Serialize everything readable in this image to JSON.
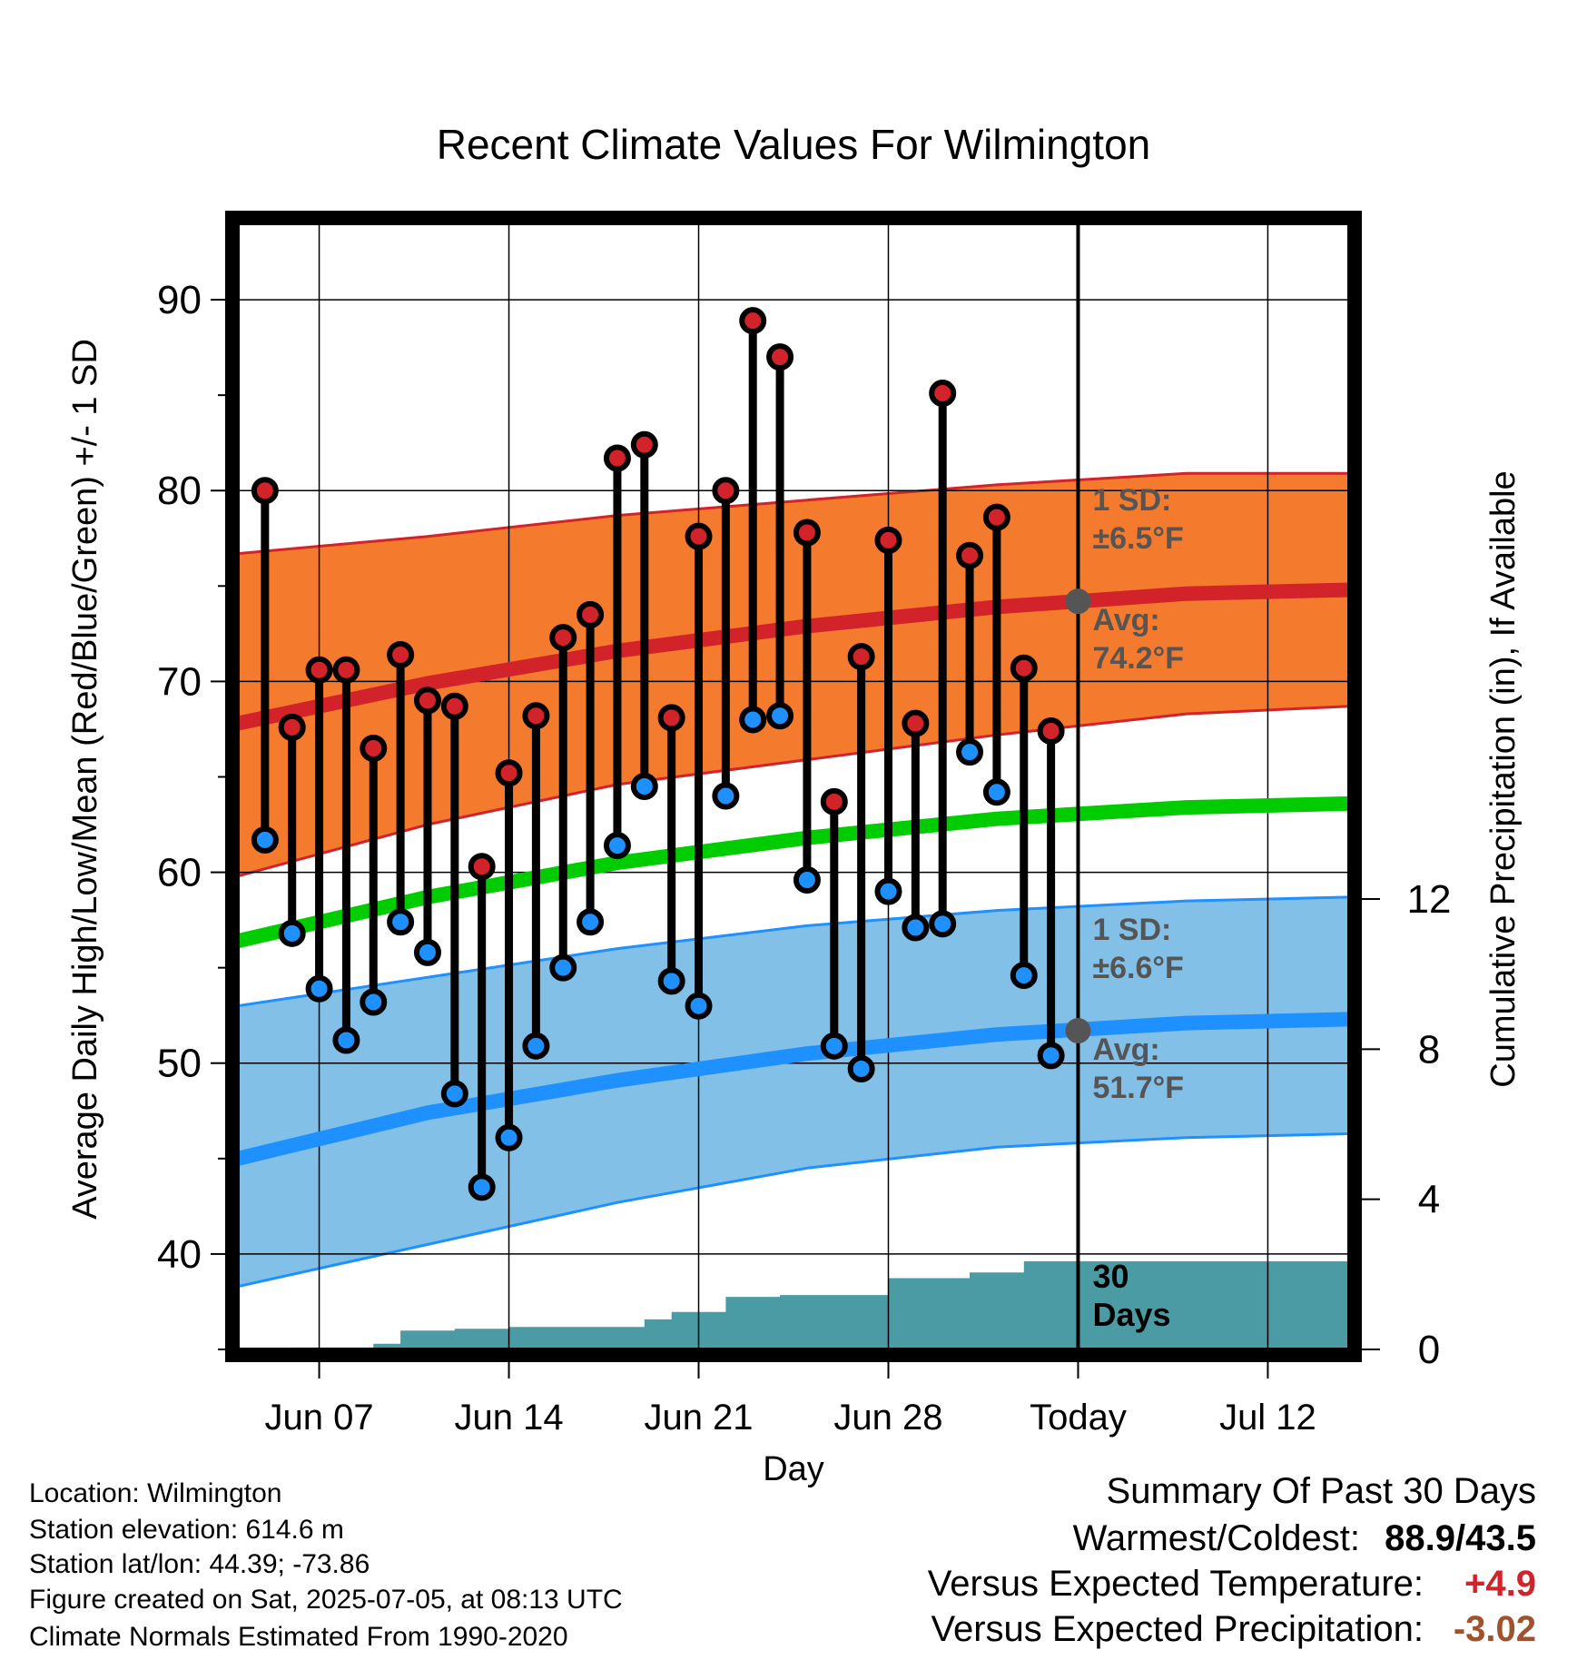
{
  "chart_data": {
    "type": "line",
    "title": "Recent Climate Values For Wilmington",
    "xlabel": "Day",
    "ylabel": "Average Daily High/Low/Mean (Red/Blue/Green) +/- 1 SD",
    "y2label": "Cumulative Precipitation (in), If Available",
    "ylim": [
      35,
      94
    ],
    "y_ticks": [
      40,
      50,
      60,
      70,
      80,
      90
    ],
    "y2lim": [
      0,
      30
    ],
    "y2_ticks": [
      0,
      4,
      8,
      12
    ],
    "x_range": [
      "2025-06-04",
      "2025-07-15"
    ],
    "x_ticks": [
      {
        "date": "2025-06-07",
        "label": "Jun 07"
      },
      {
        "date": "2025-06-14",
        "label": "Jun 14"
      },
      {
        "date": "2025-06-21",
        "label": "Jun 21"
      },
      {
        "date": "2025-06-28",
        "label": "Jun 28"
      },
      {
        "date": "2025-07-05",
        "label": "Today"
      },
      {
        "date": "2025-07-12",
        "label": "Jul 12"
      }
    ],
    "today": "2025-07-05",
    "grid": true,
    "series": [
      {
        "name": "High",
        "color": "#d2232a",
        "dates": [
          "2025-06-05",
          "2025-06-06",
          "2025-06-07",
          "2025-06-08",
          "2025-06-09",
          "2025-06-10",
          "2025-06-11",
          "2025-06-12",
          "2025-06-13",
          "2025-06-14",
          "2025-06-15",
          "2025-06-16",
          "2025-06-17",
          "2025-06-18",
          "2025-06-19",
          "2025-06-20",
          "2025-06-21",
          "2025-06-22",
          "2025-06-23",
          "2025-06-24",
          "2025-06-25",
          "2025-06-26",
          "2025-06-27",
          "2025-06-28",
          "2025-06-29",
          "2025-06-30",
          "2025-07-01",
          "2025-07-02",
          "2025-07-03",
          "2025-07-04"
        ],
        "values": [
          80.0,
          67.6,
          70.6,
          70.6,
          66.5,
          71.4,
          69.0,
          68.7,
          60.3,
          65.2,
          68.2,
          72.3,
          73.5,
          81.7,
          82.4,
          68.1,
          77.6,
          80.0,
          88.9,
          87.0,
          77.8,
          63.7,
          71.3,
          77.4,
          67.8,
          85.1,
          76.6,
          78.6,
          70.7,
          67.4
        ]
      },
      {
        "name": "Low",
        "color": "#1e90ff",
        "dates": [
          "2025-06-05",
          "2025-06-06",
          "2025-06-07",
          "2025-06-08",
          "2025-06-09",
          "2025-06-10",
          "2025-06-11",
          "2025-06-12",
          "2025-06-13",
          "2025-06-14",
          "2025-06-15",
          "2025-06-16",
          "2025-06-17",
          "2025-06-18",
          "2025-06-19",
          "2025-06-20",
          "2025-06-21",
          "2025-06-22",
          "2025-06-23",
          "2025-06-24",
          "2025-06-25",
          "2025-06-26",
          "2025-06-27",
          "2025-06-28",
          "2025-06-29",
          "2025-06-30",
          "2025-07-01",
          "2025-07-02",
          "2025-07-03",
          "2025-07-04"
        ],
        "values": [
          61.7,
          56.8,
          53.9,
          51.2,
          53.2,
          57.4,
          55.8,
          48.4,
          43.5,
          46.1,
          50.9,
          55.0,
          57.4,
          61.4,
          64.5,
          54.3,
          53.0,
          64.0,
          68.0,
          68.2,
          59.6,
          50.9,
          49.7,
          59.0,
          57.1,
          57.3,
          66.3,
          64.2,
          54.6,
          50.4
        ]
      }
    ],
    "normals": {
      "dates": [
        "2025-06-04",
        "2025-06-11",
        "2025-06-18",
        "2025-06-25",
        "2025-07-02",
        "2025-07-09",
        "2025-07-15"
      ],
      "high_mean": [
        67.8,
        69.9,
        71.6,
        72.9,
        73.9,
        74.6,
        74.8
      ],
      "high_sd_upper": [
        76.7,
        77.6,
        78.7,
        79.5,
        80.3,
        80.9,
        80.9
      ],
      "high_sd_lower": [
        59.8,
        62.5,
        64.6,
        65.9,
        67.2,
        68.3,
        68.7
      ],
      "low_mean": [
        45.0,
        47.4,
        49.1,
        50.5,
        51.5,
        52.1,
        52.3
      ],
      "low_sd_upper": [
        53.0,
        54.5,
        56.0,
        57.2,
        58.0,
        58.5,
        58.7
      ],
      "low_sd_lower": [
        38.3,
        40.5,
        42.7,
        44.5,
        45.6,
        46.1,
        46.3
      ],
      "mean": [
        56.4,
        58.7,
        60.5,
        61.8,
        62.8,
        63.4,
        63.6
      ],
      "colors": {
        "high_band": "#f47a2e",
        "high_line": "#d2232a",
        "low_band": "#82c0e8",
        "low_line": "#1e90ff",
        "mean_line": "#00cc00"
      }
    },
    "precipitation": {
      "color": "#4a9ba4",
      "dates": [
        "2025-06-04",
        "2025-06-06",
        "2025-06-08",
        "2025-06-09",
        "2025-06-10",
        "2025-06-12",
        "2025-06-14",
        "2025-06-18",
        "2025-06-19",
        "2025-06-20",
        "2025-06-21",
        "2025-06-22",
        "2025-06-23",
        "2025-06-24",
        "2025-06-27",
        "2025-06-28",
        "2025-06-29",
        "2025-06-30",
        "2025-07-01",
        "2025-07-02",
        "2025-07-03",
        "2025-07-15"
      ],
      "values": [
        0.0,
        0.05,
        0.05,
        0.15,
        0.5,
        0.55,
        0.6,
        0.6,
        0.8,
        1.0,
        1.0,
        1.4,
        1.4,
        1.45,
        1.45,
        1.9,
        1.9,
        1.9,
        2.05,
        2.05,
        2.35,
        2.35
      ]
    },
    "annotations": {
      "high_sd": {
        "label": "1 SD:",
        "value": "±6.5°F"
      },
      "high_avg": {
        "label": "Avg:",
        "value": "74.2°F",
        "y": 74.2
      },
      "low_sd": {
        "label": "1 SD:",
        "value": "±6.6°F"
      },
      "low_avg": {
        "label": "Avg:",
        "value": "51.7°F",
        "y": 51.7
      },
      "days_line1": "30",
      "days_line2": "Days"
    }
  },
  "info": {
    "location": "Location: Wilmington",
    "elevation": "Station elevation: 614.6 m",
    "latlon": "Station lat/lon: 44.39; -73.86",
    "created": "Figure created on Sat, 2025-07-05, at 08:13 UTC",
    "normals": "Climate Normals Estimated From 1990-2020"
  },
  "summary": {
    "title": "Summary Of Past 30 Days",
    "warm_cold_label": "Warmest/Coldest:",
    "warm_cold_value": "88.9/43.5",
    "temp_label": "Versus Expected Temperature:",
    "temp_value": "+4.9",
    "temp_color": "#d2232a",
    "precip_label": "Versus Expected Precipitation:",
    "precip_value": "-3.02",
    "precip_color": "#a0522d"
  }
}
